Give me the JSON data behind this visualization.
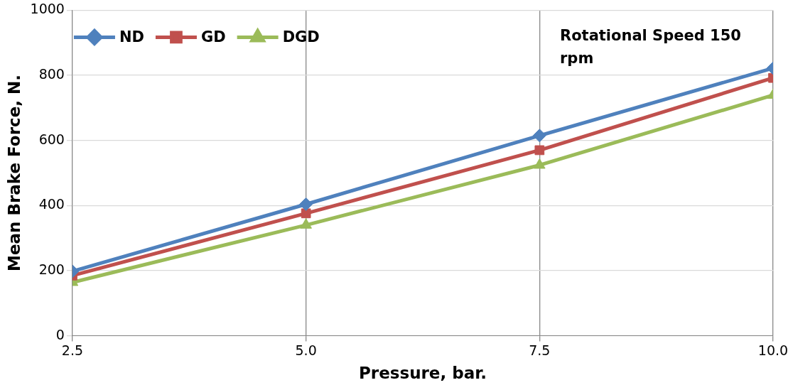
{
  "chart_data": {
    "type": "line",
    "xlabel": "Pressure, bar.",
    "ylabel": "Mean Brake Force, N.",
    "x": [
      2.5,
      5,
      7.5,
      10
    ],
    "series": [
      {
        "name": "ND",
        "color": "#4f81bd",
        "marker": "diamond",
        "values": [
          198,
          404,
          615,
          822
        ]
      },
      {
        "name": "GD",
        "color": "#c0504d",
        "marker": "square",
        "values": [
          185,
          376,
          570,
          792
        ]
      },
      {
        "name": "DGD",
        "color": "#9bbb59",
        "marker": "triangle",
        "values": [
          164,
          340,
          524,
          739
        ]
      }
    ],
    "xlim": [
      2.5,
      10
    ],
    "xticks": [
      2.5,
      {
        "value": 5,
        "label": "5.0"
      },
      7.5,
      {
        "value": 10,
        "label": "10.0"
      }
    ],
    "ylim": [
      0,
      1000
    ],
    "yticks": [
      0,
      200,
      400,
      600,
      800,
      1000
    ],
    "grid": true,
    "legend": "top left",
    "line_style": "solid",
    "annotations": [
      "Rotational Speed 150 rpm"
    ]
  }
}
